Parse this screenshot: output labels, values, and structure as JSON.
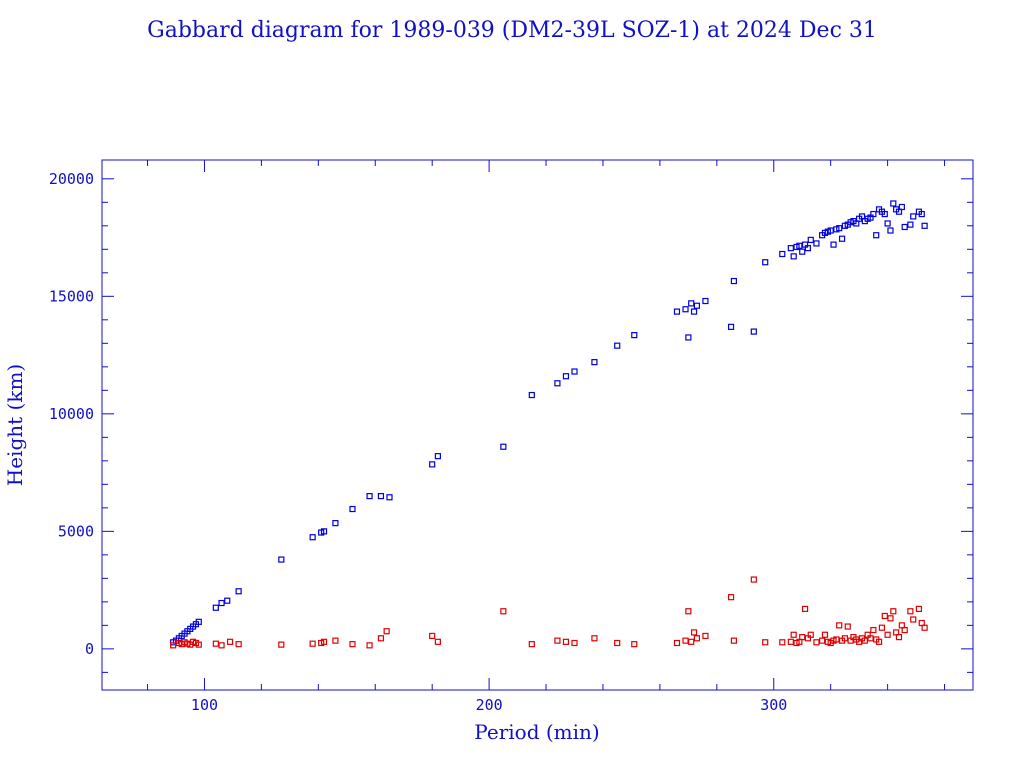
{
  "chart_data": {
    "type": "scatter",
    "title": "Gabbard diagram for 1989-039 (DM2-39L SOZ-1) at 2024 Dec 31",
    "xlabel": "Period (min)",
    "ylabel": "Height (km)",
    "xlim": [
      64,
      370
    ],
    "ylim": [
      -1750,
      20800
    ],
    "x_ticks": [
      100,
      200,
      300
    ],
    "y_ticks": [
      0,
      5000,
      10000,
      15000,
      20000
    ],
    "grid": false,
    "legend": "none",
    "series": [
      {
        "color": "#0000e0",
        "points": [
          [
            89,
            280
          ],
          [
            90,
            350
          ],
          [
            91,
            450
          ],
          [
            92,
            550
          ],
          [
            93,
            650
          ],
          [
            94,
            750
          ],
          [
            95,
            850
          ],
          [
            96,
            950
          ],
          [
            97,
            1050
          ],
          [
            98,
            1150
          ],
          [
            104,
            1750
          ],
          [
            106,
            1950
          ],
          [
            108,
            2050
          ],
          [
            112,
            2450
          ],
          [
            127,
            3800
          ],
          [
            138,
            4750
          ],
          [
            141,
            4950
          ],
          [
            142,
            5000
          ],
          [
            146,
            5350
          ],
          [
            152,
            5950
          ],
          [
            158,
            6500
          ],
          [
            162,
            6500
          ],
          [
            165,
            6450
          ],
          [
            180,
            7850
          ],
          [
            182,
            8200
          ],
          [
            205,
            8600
          ],
          [
            215,
            10800
          ],
          [
            224,
            11300
          ],
          [
            227,
            11600
          ],
          [
            230,
            11800
          ],
          [
            237,
            12200
          ],
          [
            245,
            12900
          ],
          [
            251,
            13350
          ],
          [
            266,
            14350
          ],
          [
            269,
            14450
          ],
          [
            270,
            13250
          ],
          [
            271,
            14700
          ],
          [
            272,
            14350
          ],
          [
            273,
            14600
          ],
          [
            276,
            14800
          ],
          [
            285,
            13700
          ],
          [
            286,
            15650
          ],
          [
            293,
            13500
          ],
          [
            297,
            16450
          ],
          [
            303,
            16800
          ],
          [
            306,
            17050
          ],
          [
            307,
            16700
          ],
          [
            308,
            17100
          ],
          [
            309,
            17150
          ],
          [
            310,
            16900
          ],
          [
            311,
            17200
          ],
          [
            312,
            17050
          ],
          [
            313,
            17400
          ],
          [
            315,
            17250
          ],
          [
            317,
            17600
          ],
          [
            318,
            17700
          ],
          [
            319,
            17750
          ],
          [
            320,
            17800
          ],
          [
            321,
            17200
          ],
          [
            322,
            17850
          ],
          [
            323,
            17900
          ],
          [
            324,
            17450
          ],
          [
            325,
            18000
          ],
          [
            326,
            18050
          ],
          [
            327,
            18150
          ],
          [
            328,
            18200
          ],
          [
            329,
            18100
          ],
          [
            330,
            18300
          ],
          [
            331,
            18400
          ],
          [
            332,
            18200
          ],
          [
            333,
            18300
          ],
          [
            334,
            18350
          ],
          [
            335,
            18500
          ],
          [
            336,
            17600
          ],
          [
            337,
            18700
          ],
          [
            338,
            18600
          ],
          [
            339,
            18500
          ],
          [
            340,
            18100
          ],
          [
            341,
            17800
          ],
          [
            342,
            18950
          ],
          [
            343,
            18700
          ],
          [
            344,
            18600
          ],
          [
            345,
            18800
          ],
          [
            346,
            17950
          ],
          [
            348,
            18050
          ],
          [
            349,
            18400
          ],
          [
            351,
            18600
          ],
          [
            352,
            18500
          ],
          [
            353,
            18000
          ]
        ]
      },
      {
        "color": "#e00000",
        "points": [
          [
            89,
            150
          ],
          [
            91,
            250
          ],
          [
            92,
            200
          ],
          [
            93,
            280
          ],
          [
            94,
            220
          ],
          [
            95,
            180
          ],
          [
            96,
            300
          ],
          [
            97,
            250
          ],
          [
            98,
            180
          ],
          [
            104,
            220
          ],
          [
            106,
            150
          ],
          [
            109,
            300
          ],
          [
            112,
            200
          ],
          [
            127,
            180
          ],
          [
            138,
            220
          ],
          [
            141,
            250
          ],
          [
            142,
            300
          ],
          [
            146,
            350
          ],
          [
            152,
            200
          ],
          [
            158,
            150
          ],
          [
            162,
            450
          ],
          [
            164,
            750
          ],
          [
            180,
            550
          ],
          [
            182,
            300
          ],
          [
            205,
            1600
          ],
          [
            215,
            200
          ],
          [
            224,
            350
          ],
          [
            227,
            300
          ],
          [
            230,
            250
          ],
          [
            237,
            450
          ],
          [
            245,
            250
          ],
          [
            251,
            200
          ],
          [
            266,
            250
          ],
          [
            269,
            350
          ],
          [
            270,
            1600
          ],
          [
            271,
            300
          ],
          [
            272,
            700
          ],
          [
            273,
            450
          ],
          [
            276,
            550
          ],
          [
            285,
            2200
          ],
          [
            286,
            350
          ],
          [
            293,
            2950
          ],
          [
            297,
            280
          ],
          [
            303,
            280
          ],
          [
            306,
            300
          ],
          [
            307,
            600
          ],
          [
            308,
            250
          ],
          [
            309,
            300
          ],
          [
            310,
            500
          ],
          [
            311,
            1700
          ],
          [
            312,
            450
          ],
          [
            313,
            600
          ],
          [
            315,
            280
          ],
          [
            317,
            350
          ],
          [
            318,
            600
          ],
          [
            319,
            300
          ],
          [
            320,
            250
          ],
          [
            321,
            350
          ],
          [
            322,
            400
          ],
          [
            323,
            1000
          ],
          [
            324,
            350
          ],
          [
            325,
            450
          ],
          [
            326,
            950
          ],
          [
            327,
            350
          ],
          [
            328,
            500
          ],
          [
            329,
            400
          ],
          [
            330,
            300
          ],
          [
            331,
            450
          ],
          [
            332,
            350
          ],
          [
            333,
            600
          ],
          [
            334,
            450
          ],
          [
            335,
            800
          ],
          [
            336,
            400
          ],
          [
            337,
            300
          ],
          [
            338,
            900
          ],
          [
            339,
            1400
          ],
          [
            340,
            600
          ],
          [
            341,
            1300
          ],
          [
            342,
            1600
          ],
          [
            343,
            700
          ],
          [
            344,
            500
          ],
          [
            345,
            1000
          ],
          [
            346,
            800
          ],
          [
            348,
            1600
          ],
          [
            349,
            1250
          ],
          [
            351,
            1700
          ],
          [
            352,
            1100
          ],
          [
            353,
            900
          ]
        ]
      }
    ]
  }
}
